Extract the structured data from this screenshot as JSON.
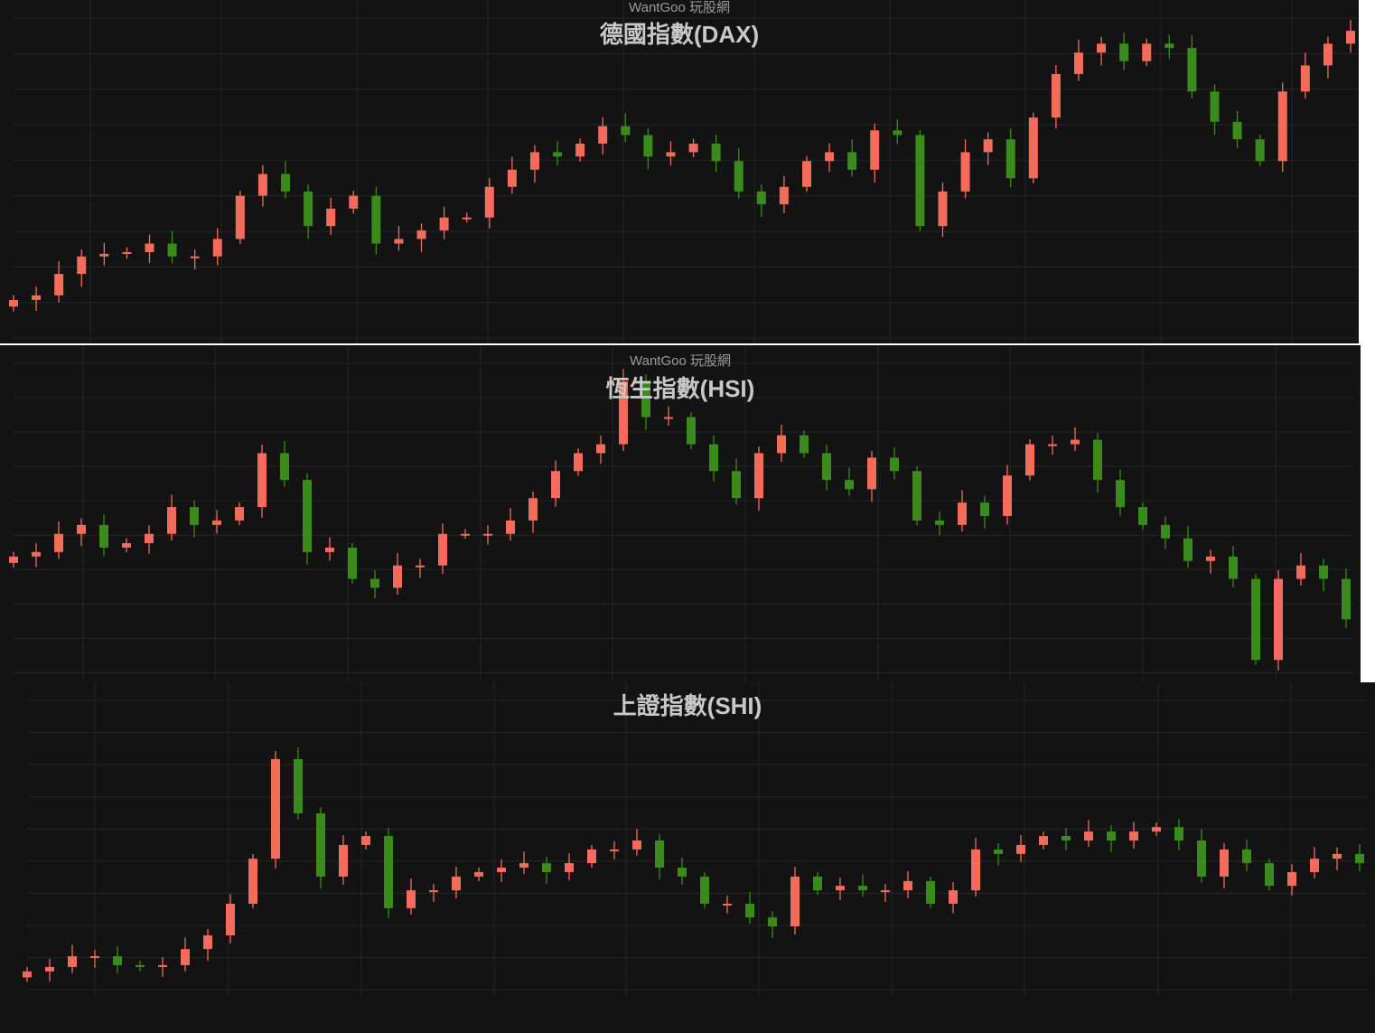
{
  "colors": {
    "background": "#131313",
    "grid": "#262626",
    "up": "#f36b5b",
    "down": "#3a8a1c"
  },
  "chart_data": [
    {
      "type": "candlestick",
      "watermark": "WantGoo 玩股網",
      "title": "德國指數(DAX)",
      "ylim": [
        0,
        100
      ],
      "grid": true,
      "close": [
        11.8,
        13.2,
        19.7,
        25,
        25.8,
        26.3,
        28.9,
        25,
        25,
        30.3,
        43.4,
        50,
        44.7,
        34.2,
        39.5,
        43.4,
        28.9,
        30.3,
        32.9,
        36.8,
        36.8,
        46.1,
        51.3,
        56.6,
        55.3,
        59.2,
        64.5,
        61.8,
        55.3,
        56.6,
        59.2,
        53.9,
        44.7,
        40.8,
        46.1,
        53.9,
        56.6,
        51.3,
        63.2,
        61.8,
        34.2,
        44.7,
        56.6,
        60.5,
        48.7,
        67.1,
        80.3,
        86.8,
        89.5,
        84.2,
        89.5,
        88.2,
        75,
        65.8,
        60.5,
        53.9,
        75,
        82.9,
        89.5,
        93.4
      ]
    },
    {
      "type": "candlestick",
      "watermark": "WantGoo 玩股網",
      "title": "恆生指數(HSI)",
      "ylim": [
        0,
        100
      ],
      "grid": true,
      "close": [
        36.6,
        38.0,
        43.7,
        46.5,
        39.4,
        40.8,
        43.7,
        52.1,
        46.5,
        47.9,
        52.1,
        69.0,
        60.6,
        38.0,
        39.4,
        29.6,
        26.8,
        33.8,
        33.8,
        43.7,
        43.7,
        43.7,
        47.9,
        54.9,
        63.4,
        69.0,
        71.8,
        91.5,
        80.3,
        80.3,
        71.8,
        63.4,
        54.9,
        69.0,
        74.6,
        69.0,
        60.6,
        57.7,
        67.6,
        63.4,
        47.9,
        46.5,
        53.5,
        49.3,
        62.0,
        71.8,
        71.8,
        73.2,
        60.6,
        52.1,
        46.5,
        42.3,
        35.2,
        36.6,
        29.6,
        4.2,
        29.6,
        33.8,
        29.6,
        16.9
      ]
    },
    {
      "type": "candlestick",
      "title": "上證指數(SHI)",
      "ylim": [
        0,
        100
      ],
      "grid": true,
      "close": [
        6.1,
        7.6,
        11.2,
        11.2,
        8.2,
        7.6,
        8.2,
        13.6,
        18.2,
        28.8,
        43.9,
        77.3,
        59.1,
        37.9,
        48.5,
        51.5,
        27.3,
        33.3,
        33.3,
        37.9,
        39.4,
        40.9,
        42.4,
        39.4,
        42.4,
        47.0,
        47.0,
        50.0,
        40.9,
        37.9,
        28.8,
        28.8,
        24.2,
        21.2,
        37.9,
        33.3,
        34.8,
        33.3,
        33.3,
        36.4,
        28.8,
        33.3,
        47.0,
        45.5,
        48.5,
        51.5,
        50.0,
        53.0,
        50.0,
        53.0,
        54.5,
        50.0,
        37.9,
        47.0,
        42.4,
        34.8,
        39.4,
        43.9,
        45.5,
        42.4
      ]
    }
  ]
}
